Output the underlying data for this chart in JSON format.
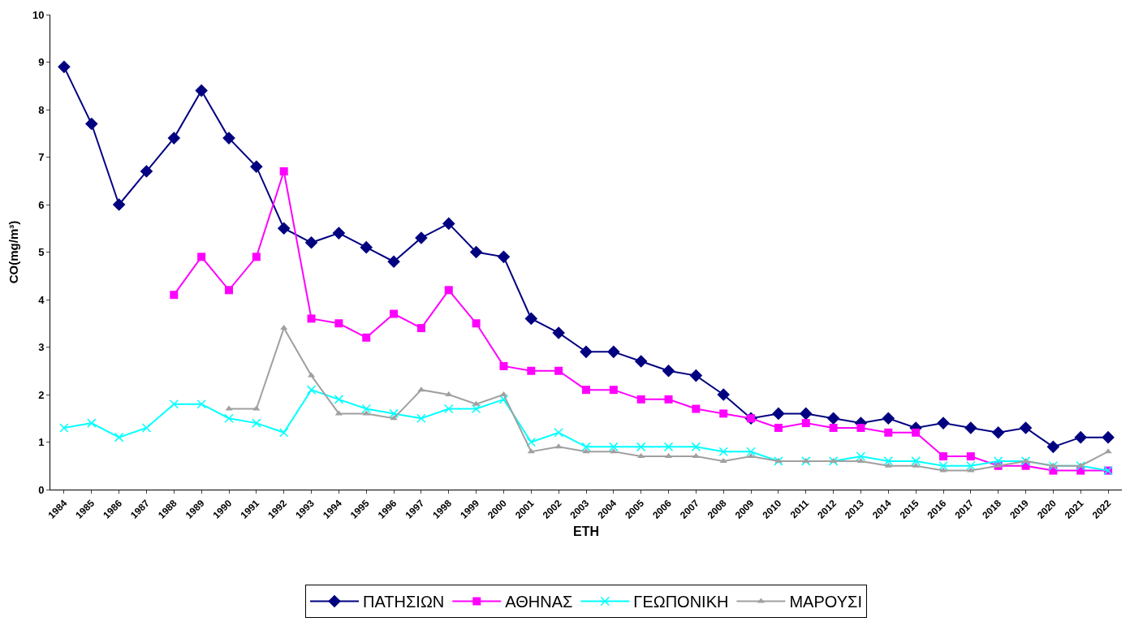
{
  "chart_data": {
    "type": "line",
    "xlabel": "ΕΤΗ",
    "ylabel": "CO(mg/m³)",
    "categories": [
      "1984",
      "1985",
      "1986",
      "1987",
      "1988",
      "1989",
      "1990",
      "1991",
      "1992",
      "1993",
      "1994",
      "1995",
      "1996",
      "1997",
      "1998",
      "1999",
      "2000",
      "2001",
      "2002",
      "2003",
      "2004",
      "2005",
      "2006",
      "2007",
      "2008",
      "2009",
      "2010",
      "2011",
      "2012",
      "2013",
      "2014",
      "2015",
      "2016",
      "2017",
      "2018",
      "2019",
      "2020",
      "2021",
      "2022"
    ],
    "ylim": [
      0,
      10
    ],
    "yticks": [
      0,
      1,
      2,
      3,
      4,
      5,
      6,
      7,
      8,
      9,
      10
    ],
    "grid": false,
    "legend": "bottom",
    "line_style": "solid",
    "series": [
      {
        "name": "ΠΑΤΗΣΙΩΝ",
        "color": "#000080",
        "marker": "diamond",
        "values": [
          8.9,
          7.7,
          6.0,
          6.7,
          7.4,
          8.4,
          7.4,
          6.8,
          5.5,
          5.2,
          5.4,
          5.1,
          4.8,
          5.3,
          5.6,
          5.0,
          4.9,
          3.6,
          3.3,
          2.9,
          2.9,
          2.7,
          2.5,
          2.4,
          2.0,
          1.5,
          1.6,
          1.6,
          1.5,
          1.4,
          1.5,
          1.3,
          1.4,
          1.3,
          1.2,
          1.3,
          0.9,
          1.1,
          1.1
        ]
      },
      {
        "name": "ΑΘΗΝΑΣ",
        "color": "#ff00ff",
        "marker": "square",
        "values": [
          null,
          null,
          null,
          null,
          4.1,
          4.9,
          4.2,
          4.9,
          6.7,
          3.6,
          3.5,
          3.2,
          3.7,
          3.4,
          4.2,
          3.5,
          2.6,
          2.5,
          2.5,
          2.1,
          2.1,
          1.9,
          1.9,
          1.7,
          1.6,
          1.5,
          1.3,
          1.4,
          1.3,
          1.3,
          1.2,
          1.2,
          0.7,
          0.7,
          0.5,
          0.5,
          0.4,
          0.4,
          0.4
        ]
      },
      {
        "name": "ΓΕΩΠΟΝΙΚΗ",
        "color": "#00ffff",
        "marker": "cross",
        "values": [
          1.3,
          1.4,
          1.1,
          1.3,
          1.8,
          1.8,
          1.5,
          1.4,
          1.2,
          2.1,
          1.9,
          1.7,
          1.6,
          1.5,
          1.7,
          1.7,
          1.9,
          1.0,
          1.2,
          0.9,
          0.9,
          0.9,
          0.9,
          0.9,
          0.8,
          0.8,
          0.6,
          0.6,
          0.6,
          0.7,
          0.6,
          0.6,
          0.5,
          0.5,
          0.6,
          0.6,
          0.5,
          0.5,
          0.4
        ]
      },
      {
        "name": "ΜΑΡΟΥΣΙ",
        "color": "#a0a0a0",
        "marker": "triangle",
        "values": [
          null,
          null,
          null,
          null,
          null,
          null,
          1.7,
          1.7,
          3.4,
          2.4,
          1.6,
          1.6,
          1.5,
          2.1,
          2.0,
          1.8,
          2.0,
          0.8,
          0.9,
          0.8,
          0.8,
          0.7,
          0.7,
          0.7,
          0.6,
          0.7,
          0.6,
          0.6,
          0.6,
          0.6,
          0.5,
          0.5,
          0.4,
          0.4,
          0.5,
          0.6,
          0.5,
          0.5,
          0.8
        ]
      }
    ]
  }
}
